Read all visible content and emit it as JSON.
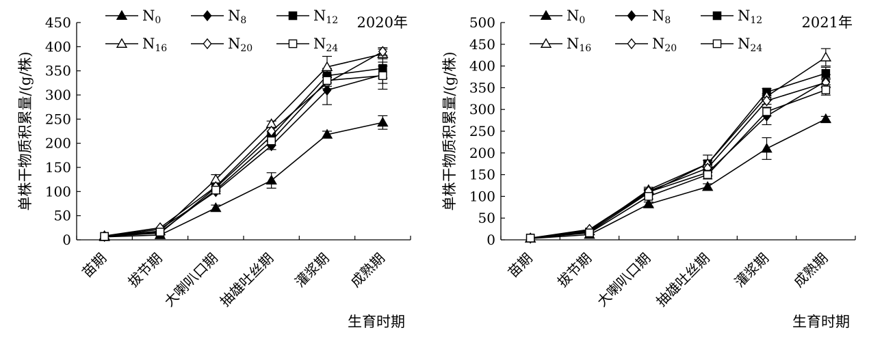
{
  "chart_data": [
    {
      "type": "line",
      "title": "2020年",
      "xlabel": "生育时期",
      "ylabel": "单株干物质积累量/(g/株)",
      "categories": [
        "苗期",
        "拔节期",
        "大喇叭口期",
        "抽雄吐丝期",
        "灌浆期",
        "成熟期"
      ],
      "ylim": [
        0,
        450
      ],
      "yticks": [
        0,
        50,
        100,
        150,
        200,
        250,
        300,
        350,
        400,
        450
      ],
      "grid": false,
      "legend_position": "top",
      "series": [
        {
          "name": "N",
          "sub": "0",
          "marker": "triangle-filled",
          "values": [
            6,
            10,
            66,
            123,
            218,
            243
          ],
          "errors": [
            0,
            0,
            6,
            16,
            7,
            14
          ]
        },
        {
          "name": "N",
          "sub": "8",
          "marker": "diamond-filled",
          "values": [
            7,
            22,
            100,
            195,
            310,
            342
          ],
          "errors": [
            0,
            0,
            5,
            8,
            30,
            18
          ]
        },
        {
          "name": "N",
          "sub": "12",
          "marker": "square-filled",
          "values": [
            7,
            14,
            108,
            215,
            340,
            355
          ],
          "errors": [
            0,
            0,
            8,
            10,
            15,
            20
          ]
        },
        {
          "name": "N",
          "sub": "16",
          "marker": "triangle-open",
          "values": [
            8,
            18,
            125,
            240,
            358,
            385
          ],
          "errors": [
            0,
            0,
            10,
            6,
            22,
            10
          ]
        },
        {
          "name": "N",
          "sub": "20",
          "marker": "diamond-open",
          "values": [
            8,
            25,
            110,
            225,
            325,
            390
          ],
          "errors": [
            0,
            0,
            8,
            8,
            12,
            8
          ]
        },
        {
          "name": "N",
          "sub": "24",
          "marker": "square-open",
          "values": [
            7,
            16,
            103,
            205,
            330,
            340
          ],
          "errors": [
            0,
            0,
            7,
            9,
            12,
            28
          ]
        }
      ]
    },
    {
      "type": "line",
      "title": "2021年",
      "xlabel": "生育时期",
      "ylabel": "单株干物质积累量/(g/株)",
      "categories": [
        "苗期",
        "拔节期",
        "大喇叭口期",
        "抽雄吐丝期",
        "灌浆期",
        "成熟期"
      ],
      "ylim": [
        0,
        500
      ],
      "yticks": [
        0,
        50,
        100,
        150,
        200,
        250,
        300,
        350,
        400,
        450,
        500
      ],
      "grid": false,
      "legend_position": "top",
      "series": [
        {
          "name": "N",
          "sub": "0",
          "marker": "triangle-filled",
          "values": [
            3,
            12,
            82,
            122,
            210,
            278
          ],
          "errors": [
            0,
            0,
            5,
            7,
            25,
            6
          ]
        },
        {
          "name": "N",
          "sub": "8",
          "marker": "diamond-filled",
          "values": [
            4,
            22,
            110,
            155,
            285,
            365
          ],
          "errors": [
            0,
            0,
            5,
            8,
            20,
            15
          ]
        },
        {
          "name": "N",
          "sub": "12",
          "marker": "square-filled",
          "values": [
            4,
            18,
            108,
            175,
            340,
            383
          ],
          "errors": [
            0,
            0,
            5,
            8,
            8,
            14
          ]
        },
        {
          "name": "N",
          "sub": "16",
          "marker": "triangle-open",
          "values": [
            3,
            20,
            115,
            175,
            330,
            420
          ],
          "errors": [
            0,
            0,
            6,
            20,
            6,
            20
          ]
        },
        {
          "name": "N",
          "sub": "20",
          "marker": "diamond-open",
          "values": [
            4,
            24,
            112,
            165,
            320,
            362
          ],
          "errors": [
            0,
            0,
            6,
            8,
            8,
            10
          ]
        },
        {
          "name": "N",
          "sub": "24",
          "marker": "square-open",
          "values": [
            4,
            16,
            100,
            150,
            295,
            345
          ],
          "errors": [
            0,
            0,
            6,
            10,
            10,
            12
          ]
        }
      ]
    }
  ]
}
